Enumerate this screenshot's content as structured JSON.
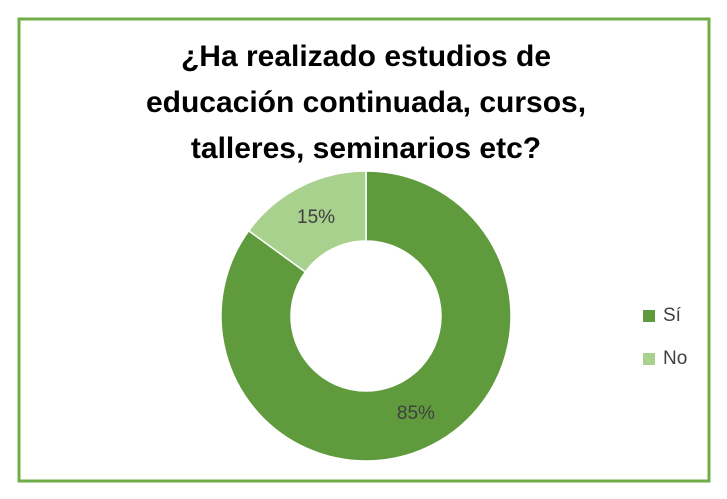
{
  "chart_data": {
    "type": "donut",
    "title": [
      "¿Ha realizado estudios de",
      "educación continuada, cursos,",
      "talleres, seminarios etc?"
    ],
    "categories": [
      "Sí",
      "No"
    ],
    "values": [
      85,
      15
    ],
    "value_labels": [
      "85%",
      "15%"
    ],
    "colors": [
      "#5f9a3d",
      "#a9d18e"
    ],
    "legend": "right"
  }
}
